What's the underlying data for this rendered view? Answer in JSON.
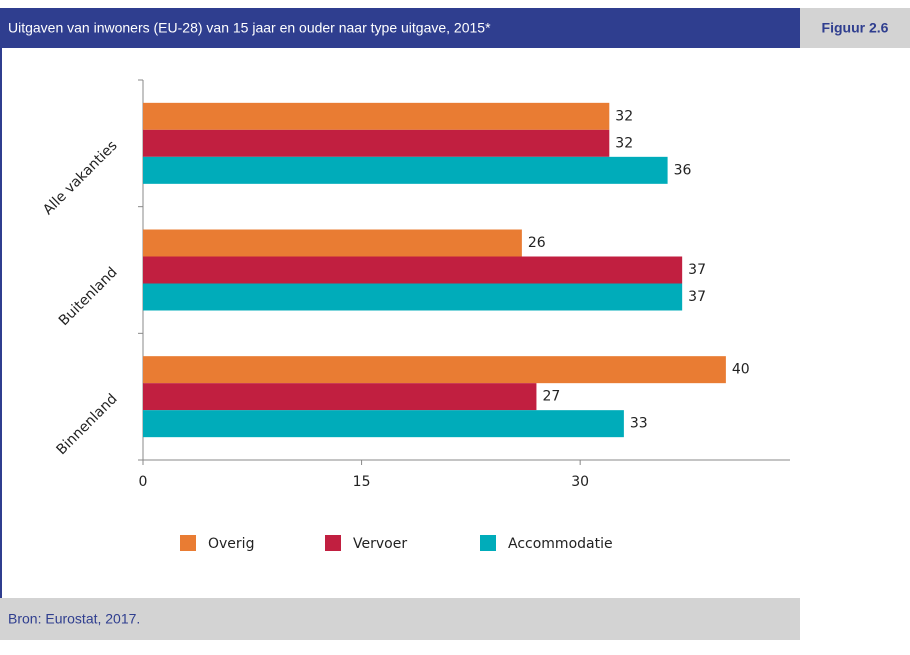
{
  "chart_data": {
    "type": "bar",
    "orientation": "horizontal",
    "title": "Uitgaven van inwoners (EU-28) van 15 jaar en ouder naar type uitgave, 2015*",
    "figure_label": "Figuur 2.6",
    "source": "Bron: Eurostat, 2017.",
    "categories": [
      "Alle vakanties",
      "Buitenland",
      "Binnenland"
    ],
    "series": [
      {
        "name": "Overig",
        "color": "#e97c33",
        "values": [
          32,
          26,
          40
        ]
      },
      {
        "name": "Vervoer",
        "color": "#c11f40",
        "values": [
          32,
          37,
          27
        ]
      },
      {
        "name": "Accommodatie",
        "color": "#00acba",
        "values": [
          36,
          37,
          33
        ]
      }
    ],
    "xlim": [
      0,
      44.4
    ],
    "xticks": [
      0,
      15,
      30
    ],
    "grid": false,
    "legend": "bottom"
  }
}
